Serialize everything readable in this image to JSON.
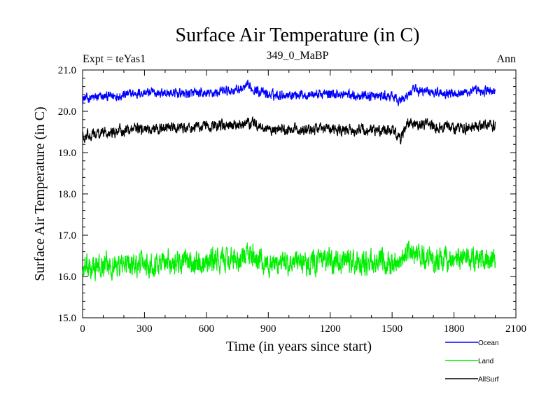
{
  "chart_data": {
    "type": "line",
    "title": "Surface Air Temperature (in C)",
    "subtitle_left": "Expt = teYas1",
    "subtitle_center": "349_0_MaBP",
    "subtitle_right": "Ann",
    "xlabel": "Time (in years since start)",
    "ylabel": "Surface Air Temperature (in C)",
    "xlim": [
      0,
      2100
    ],
    "ylim": [
      15.0,
      21.0
    ],
    "x_ticks": [
      0,
      300,
      600,
      900,
      1200,
      1500,
      1800,
      2100
    ],
    "x_tick_labels": [
      "0",
      "300",
      "600",
      "900",
      "1200",
      "1500",
      "1800",
      "2100"
    ],
    "y_ticks": [
      15.0,
      16.0,
      17.0,
      18.0,
      19.0,
      20.0,
      21.0
    ],
    "y_tick_labels": [
      "15.0",
      "16.0",
      "17.0",
      "18.0",
      "19.0",
      "20.0",
      "21.0"
    ],
    "x_range": [
      0,
      2000
    ],
    "series": [
      {
        "name": "Ocean",
        "color": "#0000ff",
        "mean": 20.42,
        "noise": 0.09,
        "anchors": [
          [
            0,
            20.3
          ],
          [
            100,
            20.35
          ],
          [
            300,
            20.45
          ],
          [
            600,
            20.42
          ],
          [
            780,
            20.55
          ],
          [
            800,
            20.6
          ],
          [
            900,
            20.4
          ],
          [
            1200,
            20.42
          ],
          [
            1500,
            20.35
          ],
          [
            1540,
            20.25
          ],
          [
            1600,
            20.5
          ],
          [
            1800,
            20.45
          ],
          [
            2000,
            20.5
          ]
        ]
      },
      {
        "name": "Land",
        "color": "#00ee00",
        "mean": 16.3,
        "noise": 0.22,
        "anchors": [
          [
            0,
            16.15
          ],
          [
            100,
            16.25
          ],
          [
            400,
            16.35
          ],
          [
            780,
            16.4
          ],
          [
            800,
            16.55
          ],
          [
            900,
            16.3
          ],
          [
            1200,
            16.35
          ],
          [
            1500,
            16.3
          ],
          [
            1580,
            16.6
          ],
          [
            1700,
            16.4
          ],
          [
            2000,
            16.4
          ]
        ]
      },
      {
        "name": "AllSurf",
        "color": "#000000",
        "mean": 19.55,
        "noise": 0.1,
        "anchors": [
          [
            0,
            19.4
          ],
          [
            100,
            19.5
          ],
          [
            400,
            19.6
          ],
          [
            780,
            19.65
          ],
          [
            800,
            19.75
          ],
          [
            900,
            19.55
          ],
          [
            1200,
            19.58
          ],
          [
            1500,
            19.52
          ],
          [
            1540,
            19.35
          ],
          [
            1580,
            19.72
          ],
          [
            1800,
            19.6
          ],
          [
            2000,
            19.65
          ]
        ]
      }
    ],
    "legend": {
      "position": "bottom-right",
      "entries": [
        "Ocean",
        "Land",
        "AllSurf"
      ]
    }
  }
}
